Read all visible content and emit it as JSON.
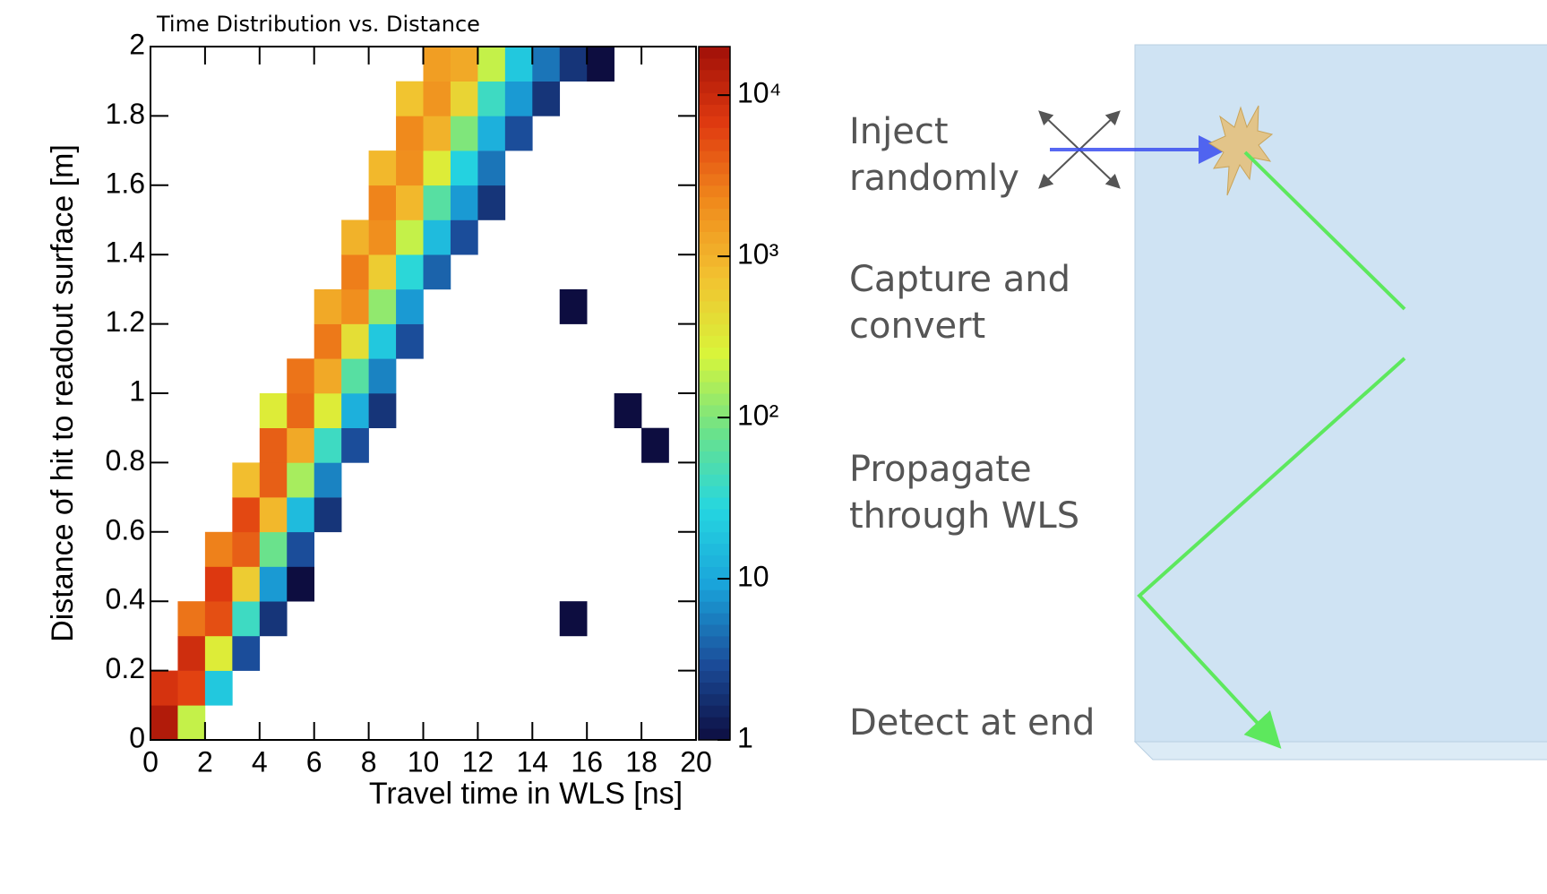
{
  "chart_data": {
    "type": "heatmap",
    "title": "Time Distribution vs. Distance",
    "xlabel": "Travel time in WLS [ns]",
    "ylabel": "Distance of hit to readout surface [m]",
    "xlim": [
      0,
      20
    ],
    "ylim": [
      0,
      2
    ],
    "xticks": [
      0,
      2,
      4,
      6,
      8,
      10,
      12,
      14,
      16,
      18,
      20
    ],
    "yticks": [
      0,
      0.2,
      0.4,
      0.6,
      0.8,
      1,
      1.2,
      1.4,
      1.6,
      1.8,
      2
    ],
    "zlim": [
      1,
      20000
    ],
    "zlog": true,
    "zticks": [
      1,
      10,
      {
        "value": 100,
        "label": "10²"
      },
      {
        "value": 1000,
        "label": "10³"
      },
      {
        "value": 10000,
        "label": "10⁴"
      }
    ],
    "colormap": [
      "#0d0d40",
      "#1b4d9a",
      "#1aa3da",
      "#25d6e0",
      "#6be28a",
      "#d8f53a",
      "#f2c230",
      "#f08a1c",
      "#e03a10",
      "#a01008"
    ],
    "z": [
      [
        15000,
        200,
        null,
        null,
        null,
        null,
        null,
        null,
        null,
        null,
        null,
        null,
        null,
        null,
        null,
        null,
        null,
        null,
        null,
        null
      ],
      [
        8000,
        6000,
        20,
        null,
        null,
        null,
        null,
        null,
        null,
        null,
        null,
        null,
        null,
        null,
        null,
        null,
        null,
        null,
        null,
        null
      ],
      [
        null,
        9000,
        300,
        3,
        null,
        null,
        null,
        null,
        null,
        null,
        null,
        null,
        null,
        null,
        null,
        null,
        null,
        null,
        null,
        null
      ],
      [
        null,
        3000,
        5000,
        40,
        2,
        null,
        null,
        null,
        null,
        null,
        null,
        null,
        null,
        null,
        null,
        1,
        null,
        null,
        null,
        null
      ],
      [
        null,
        null,
        7000,
        600,
        8,
        1,
        null,
        null,
        null,
        null,
        null,
        null,
        null,
        null,
        null,
        null,
        null,
        null,
        null,
        null
      ],
      [
        null,
        null,
        2500,
        4000,
        80,
        3,
        null,
        null,
        null,
        null,
        null,
        null,
        null,
        null,
        null,
        null,
        null,
        null,
        null,
        null
      ],
      [
        null,
        null,
        null,
        5500,
        900,
        15,
        2,
        null,
        null,
        null,
        null,
        null,
        null,
        null,
        null,
        null,
        null,
        null,
        null,
        null
      ],
      [
        null,
        null,
        null,
        800,
        4000,
        150,
        6,
        null,
        null,
        null,
        null,
        null,
        null,
        null,
        null,
        null,
        null,
        null,
        null,
        null
      ],
      [
        null,
        null,
        null,
        null,
        4000,
        1200,
        40,
        3,
        null,
        null,
        null,
        null,
        null,
        null,
        null,
        null,
        null,
        null,
        1,
        null
      ],
      [
        null,
        null,
        null,
        null,
        300,
        3500,
        300,
        12,
        2,
        null,
        null,
        null,
        null,
        null,
        null,
        null,
        null,
        1,
        null,
        null
      ],
      [
        null,
        null,
        null,
        null,
        null,
        3000,
        1200,
        60,
        6,
        null,
        null,
        null,
        null,
        null,
        null,
        null,
        null,
        null,
        null,
        null
      ],
      [
        null,
        null,
        null,
        null,
        null,
        null,
        2800,
        400,
        20,
        3,
        null,
        null,
        null,
        null,
        null,
        null,
        null,
        null,
        null,
        null
      ],
      [
        null,
        null,
        null,
        null,
        null,
        null,
        1200,
        2000,
        120,
        8,
        null,
        null,
        null,
        null,
        null,
        1,
        null,
        null,
        null,
        null
      ],
      [
        null,
        null,
        null,
        null,
        null,
        null,
        null,
        2600,
        600,
        30,
        4,
        null,
        null,
        null,
        null,
        null,
        null,
        null,
        null,
        null
      ],
      [
        null,
        null,
        null,
        null,
        null,
        null,
        null,
        1000,
        2000,
        200,
        15,
        3,
        null,
        null,
        null,
        null,
        null,
        null,
        null,
        null
      ],
      [
        null,
        null,
        null,
        null,
        null,
        null,
        null,
        null,
        2400,
        900,
        60,
        8,
        2,
        null,
        null,
        null,
        null,
        null,
        null,
        null
      ],
      [
        null,
        null,
        null,
        null,
        null,
        null,
        null,
        null,
        900,
        2000,
        300,
        25,
        5,
        null,
        null,
        null,
        null,
        null,
        null,
        null
      ],
      [
        null,
        null,
        null,
        null,
        null,
        null,
        null,
        null,
        null,
        2200,
        1000,
        100,
        12,
        3,
        null,
        null,
        null,
        null,
        null,
        null
      ],
      [
        null,
        null,
        null,
        null,
        null,
        null,
        null,
        null,
        null,
        700,
        1800,
        500,
        40,
        8,
        2,
        null,
        null,
        null,
        null,
        null
      ],
      [
        null,
        null,
        null,
        null,
        null,
        null,
        null,
        null,
        null,
        null,
        1500,
        1200,
        200,
        20,
        5,
        2,
        1,
        null,
        null,
        null
      ]
    ]
  },
  "diagram": {
    "steps": [
      {
        "lines": [
          "Inject",
          "randomly"
        ]
      },
      {
        "lines": [
          "Capture and",
          "convert"
        ]
      },
      {
        "lines": [
          "Propagate",
          "through WLS"
        ]
      },
      {
        "lines": [
          "Detect at end"
        ]
      }
    ]
  }
}
